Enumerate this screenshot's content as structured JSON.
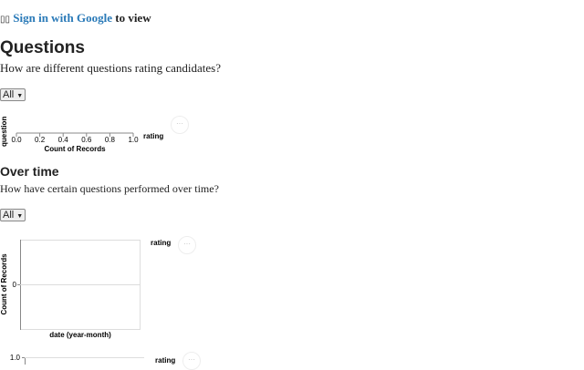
{
  "signin": {
    "icons": "broken-image-icons",
    "link": "Sign in with Google",
    "suffix": " to view"
  },
  "questions": {
    "title": "Questions",
    "subtitle": "How are different questions rating candidates?",
    "filter": "All"
  },
  "overtime": {
    "title": "Over time",
    "subtitle": "How have certain questions performed over time?",
    "filter": "All"
  },
  "more_label": "···",
  "chart_data": [
    {
      "type": "bar",
      "xlabel": "Count of Records",
      "ylabel": "question",
      "legend_title": "rating",
      "xlim": [
        0,
        1
      ],
      "x_ticks": [
        "0.0",
        "0.2",
        "0.4",
        "0.6",
        "0.8",
        "1.0"
      ],
      "values": []
    },
    {
      "type": "line",
      "xlabel": "date (year-month)",
      "ylabel": "Count of Records",
      "legend_title": "rating",
      "y_ticks": [
        "0"
      ],
      "values": []
    },
    {
      "type": "line",
      "legend_title": "rating",
      "y_ticks": [
        "1.0"
      ],
      "values": []
    }
  ]
}
